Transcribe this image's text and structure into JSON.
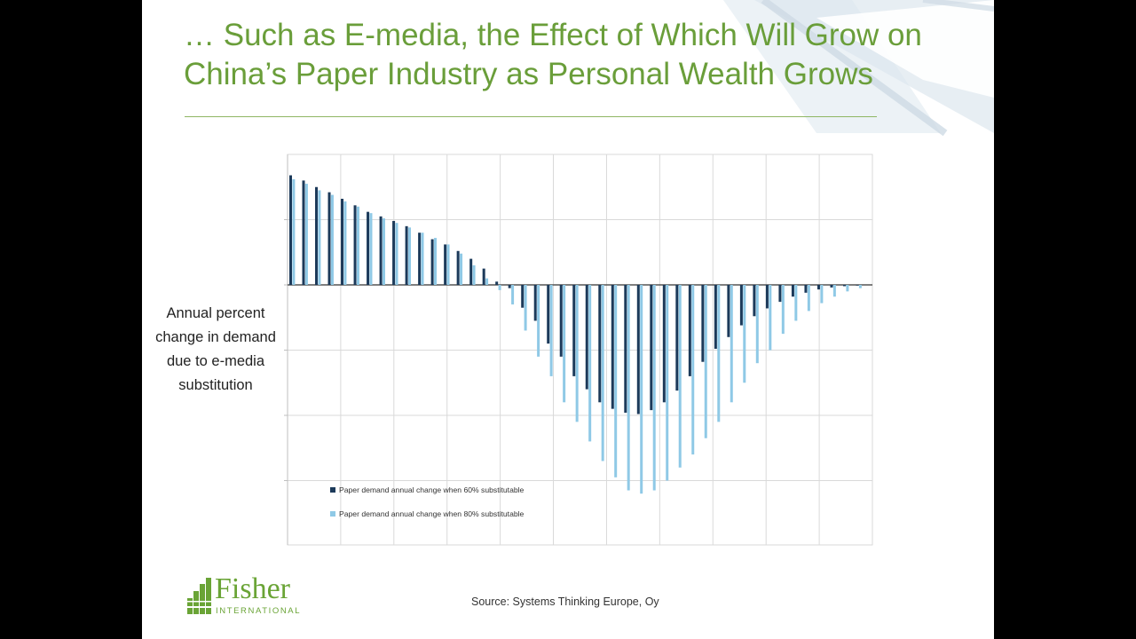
{
  "slide": {
    "title": "… Such as E-media, the Effect of Which Will Grow on China’s Paper Industry as Personal Wealth Grows",
    "ylabel": "Annual percent change in demand due to e-media substitution",
    "source": "Source: Systems Thinking Europe, Oy",
    "logo": {
      "name": "Fisher",
      "subtitle": "INTERNATIONAL"
    },
    "colors": {
      "title": "#6a9e3a",
      "rule": "#8fb663",
      "logo": "#6aa436"
    }
  },
  "chart_data": {
    "type": "bar",
    "grid": true,
    "legend_position": "bottom-left inside",
    "series": [
      {
        "name": "Paper demand annual change when 60% substitutable",
        "color": "#1c3a5a",
        "values": [
          1.68,
          1.6,
          1.5,
          1.42,
          1.32,
          1.22,
          1.12,
          1.05,
          0.98,
          0.9,
          0.8,
          0.7,
          0.62,
          0.52,
          0.4,
          0.25,
          0.05,
          -0.05,
          -0.35,
          -0.55,
          -0.9,
          -1.1,
          -1.4,
          -1.6,
          -1.8,
          -1.9,
          -1.96,
          -1.98,
          -1.92,
          -1.8,
          -1.62,
          -1.4,
          -1.18,
          -0.98,
          -0.8,
          -0.62,
          -0.48,
          -0.36,
          -0.26,
          -0.18,
          -0.12,
          -0.07,
          -0.04,
          -0.02,
          -0.01
        ]
      },
      {
        "name": "Paper demand annual change when 80% substitutable",
        "color": "#8fc9e6",
        "values": [
          1.62,
          1.55,
          1.45,
          1.38,
          1.28,
          1.2,
          1.1,
          1.02,
          0.95,
          0.88,
          0.8,
          0.72,
          0.62,
          0.48,
          0.3,
          0.1,
          -0.08,
          -0.3,
          -0.7,
          -1.1,
          -1.4,
          -1.8,
          -2.1,
          -2.4,
          -2.7,
          -2.95,
          -3.15,
          -3.2,
          -3.15,
          -3.0,
          -2.8,
          -2.6,
          -2.35,
          -2.1,
          -1.8,
          -1.5,
          -1.2,
          -1.0,
          -0.75,
          -0.55,
          -0.4,
          -0.28,
          -0.18,
          -0.1,
          -0.05
        ]
      }
    ]
  }
}
